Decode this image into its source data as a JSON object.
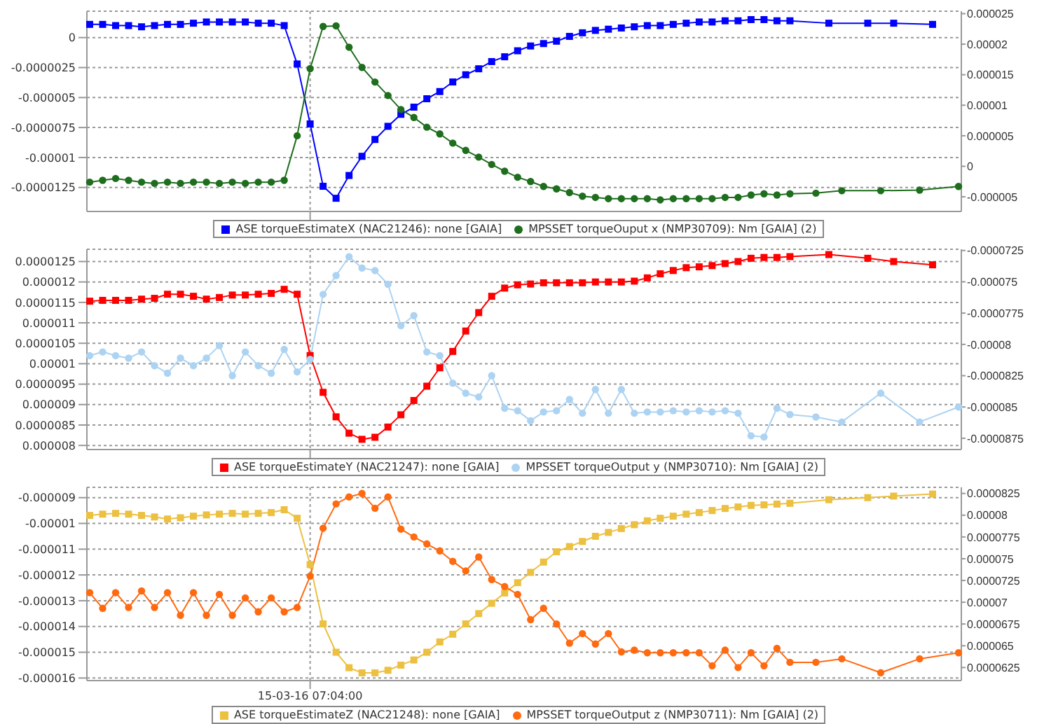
{
  "chart_data": [
    {
      "type": "line",
      "legend": "bottom",
      "grid": true,
      "tick_labels": "y",
      "line_style": "solid",
      "categories": [
        null,
        null,
        null,
        null,
        null,
        null,
        null,
        null,
        null,
        null,
        null,
        null,
        null,
        null,
        null,
        null,
        null,
        null,
        null,
        null,
        null,
        null,
        null,
        null,
        null,
        null,
        null,
        null,
        null,
        null,
        null,
        null,
        null,
        null,
        null,
        null,
        null,
        null,
        null,
        null,
        null,
        null,
        null,
        null,
        null,
        null,
        null,
        null,
        null,
        null,
        null,
        null,
        null,
        null,
        null,
        null,
        null,
        null,
        null,
        null,
        null,
        null,
        null,
        null,
        null,
        null,
        null,
        null
      ],
      "ylim": [
        -1.45e-05,
        2.2e-06
      ],
      "yticks": [
        {
          "value": 0,
          "label": "0"
        },
        {
          "value": -2.5e-06,
          "label": "-0.0000025"
        },
        {
          "value": -5e-06,
          "label": "-0.000005"
        },
        {
          "value": -7.5e-06,
          "label": "-0.0000075"
        },
        {
          "value": -1e-05,
          "label": "-0.00001"
        },
        {
          "value": -1.25e-05,
          "label": "-0.0000125"
        }
      ],
      "y2lim": [
        -7.4e-06,
        2.54e-05
      ],
      "y2ticks": [
        {
          "value": 2.5e-05,
          "label": "0.000025"
        },
        {
          "value": 2e-05,
          "label": "0.00002"
        },
        {
          "value": 1.5e-05,
          "label": "0.000015"
        },
        {
          "value": 1e-05,
          "label": "0.00001"
        },
        {
          "value": 5e-06,
          "label": "0.000005"
        },
        {
          "value": 0,
          "label": "0"
        },
        {
          "value": -5e-06,
          "label": "-0.000005"
        }
      ],
      "series": [
        {
          "name": "ASE torqueEstimateX (NAC21246): none [GAIA]",
          "color": "#0000ff",
          "marker": "square",
          "values": [
            1.1e-06,
            1.1e-06,
            1e-06,
            1e-06,
            9e-07,
            1e-06,
            1.1e-06,
            1.1e-06,
            1.2e-06,
            1.3e-06,
            1.3e-06,
            1.3e-06,
            1.3e-06,
            1.2e-06,
            1.2e-06,
            1e-06,
            -2.2e-06,
            -7.2e-06,
            -1.24e-05,
            -1.34e-05,
            -1.15e-05,
            -9.9e-06,
            -8.5e-06,
            -7.4e-06,
            -6.4e-06,
            -5.8e-06,
            -5.1e-06,
            -4.5e-06,
            -3.7e-06,
            -3.1e-06,
            -2.6e-06,
            -2e-06,
            -1.6e-06,
            -1.1e-06,
            -7e-07,
            -5e-07,
            -3e-07,
            1e-07,
            4e-07,
            6e-07,
            7e-07,
            8e-07,
            9e-07,
            1e-06,
            1e-06,
            1.1e-06,
            1.2e-06,
            1.3e-06,
            1.3e-06,
            1.4e-06,
            1.4e-06,
            1.5e-06,
            1.5e-06,
            1.4e-06,
            1.4e-06,
            null,
            null,
            1.2e-06,
            null,
            null,
            1.2e-06,
            null,
            1.2e-06,
            null,
            null,
            1.1e-06,
            null,
            null
          ]
        },
        {
          "name": "MPSSET torqueOuput x (NMP30709): Nm [GAIA] (2)",
          "color": "#1e6e1e",
          "marker": "circle",
          "axis": "y2",
          "values": [
            -2.6e-06,
            -2.3e-06,
            -2e-06,
            -2.3e-06,
            -2.6e-06,
            -2.8e-06,
            -2.6e-06,
            -2.8e-06,
            -2.6e-06,
            -2.6e-06,
            -2.8e-06,
            -2.6e-06,
            -2.8e-06,
            -2.6e-06,
            -2.6e-06,
            -2.3e-06,
            5e-06,
            1.6e-05,
            2.29e-05,
            2.3e-05,
            1.95e-05,
            1.62e-05,
            1.38e-05,
            1.16e-05,
            9.3e-06,
            8e-06,
            6.4e-06,
            5.3e-06,
            3.8e-06,
            2.6e-06,
            1.5e-06,
            3e-07,
            -8e-07,
            -1.8e-06,
            -2.5e-06,
            -3.3e-06,
            -3.7e-06,
            -4.3e-06,
            -4.9e-06,
            -5.1e-06,
            -5.3e-06,
            -5.3e-06,
            -5.3e-06,
            -5.3e-06,
            -5.5e-06,
            -5.3e-06,
            -5.3e-06,
            -5.3e-06,
            -5.3e-06,
            -5.1e-06,
            -5.1e-06,
            -4.7e-06,
            -4.5e-06,
            -4.7e-06,
            -4.5e-06,
            null,
            -4.4e-06,
            null,
            -4e-06,
            null,
            null,
            -4e-06,
            null,
            null,
            -3.9e-06,
            null,
            null,
            -3.3e-06
          ]
        }
      ]
    },
    {
      "type": "line",
      "legend": "bottom",
      "grid": true,
      "tick_labels": "y",
      "line_style": "solid",
      "categories": [
        null,
        null,
        null,
        null,
        null,
        null,
        null,
        null,
        null,
        null,
        null,
        null,
        null,
        null,
        null,
        null,
        null,
        null,
        null,
        null,
        null,
        null,
        null,
        null,
        null,
        null,
        null,
        null,
        null,
        null,
        null,
        null,
        null,
        null,
        null,
        null,
        null,
        null,
        null,
        null,
        null,
        null,
        null,
        null,
        null,
        null,
        null,
        null,
        null,
        null,
        null,
        null,
        null,
        null,
        null,
        null,
        null,
        null,
        null,
        null,
        null,
        null,
        null,
        null,
        null,
        null,
        null,
        null
      ],
      "ylim": [
        7.9e-06,
        1.28e-05
      ],
      "yticks": [
        {
          "value": 1.25e-05,
          "label": "0.0000125"
        },
        {
          "value": 1.2e-05,
          "label": "0.000012"
        },
        {
          "value": 1.15e-05,
          "label": "0.0000115"
        },
        {
          "value": 1.1e-05,
          "label": "0.000011"
        },
        {
          "value": 1.05e-05,
          "label": "0.0000105"
        },
        {
          "value": 1e-05,
          "label": "0.00001"
        },
        {
          "value": 9.5e-06,
          "label": "0.0000095"
        },
        {
          "value": 9e-06,
          "label": "0.000009"
        },
        {
          "value": 8.5e-06,
          "label": "0.0000085"
        },
        {
          "value": 8e-06,
          "label": "0.000008"
        }
      ],
      "y2lim": [
        -8.84e-05,
        -7.24e-05
      ],
      "y2ticks": [
        {
          "value": -7.25e-05,
          "label": "-0.0000725"
        },
        {
          "value": -7.5e-05,
          "label": "-0.000075"
        },
        {
          "value": -7.75e-05,
          "label": "-0.0000775"
        },
        {
          "value": -8e-05,
          "label": "-0.00008"
        },
        {
          "value": -8.25e-05,
          "label": "-0.0000825"
        },
        {
          "value": -8.5e-05,
          "label": "-0.000085"
        },
        {
          "value": -8.75e-05,
          "label": "-0.0000875"
        }
      ],
      "series": [
        {
          "name": "ASE torqueEstimateY (NAC21247): none [GAIA]",
          "color": "#ff0000",
          "marker": "square",
          "values": [
            1.153e-05,
            1.155e-05,
            1.155e-05,
            1.155e-05,
            1.158e-05,
            1.16e-05,
            1.17e-05,
            1.17e-05,
            1.165e-05,
            1.158e-05,
            1.162e-05,
            1.168e-05,
            1.168e-05,
            1.17e-05,
            1.172e-05,
            1.182e-05,
            1.17e-05,
            1.02e-05,
            9.3e-06,
            8.7e-06,
            8.3e-06,
            8.15e-06,
            8.2e-06,
            8.45e-06,
            8.75e-06,
            9.1e-06,
            9.45e-06,
            9.9e-06,
            1.03e-05,
            1.08e-05,
            1.125e-05,
            1.165e-05,
            1.185e-05,
            1.193e-05,
            1.195e-05,
            1.198e-05,
            1.198e-05,
            1.198e-05,
            1.198e-05,
            1.2e-05,
            1.2e-05,
            1.2e-05,
            1.202e-05,
            1.21e-05,
            1.22e-05,
            1.228e-05,
            1.235e-05,
            1.237e-05,
            1.24e-05,
            1.245e-05,
            1.25e-05,
            1.258e-05,
            1.26e-05,
            1.26e-05,
            1.262e-05,
            null,
            null,
            1.267e-05,
            null,
            null,
            1.258e-05,
            null,
            1.25e-05,
            null,
            null,
            1.242e-05,
            null,
            null
          ]
        },
        {
          "name": "MPSSET torqueOutput y (NMP30710): Nm [GAIA] (2)",
          "color": "#add3f2",
          "marker": "circle",
          "axis": "y2",
          "values": [
            -8.09e-05,
            -8.06e-05,
            -8.09e-05,
            -8.11e-05,
            -8.06e-05,
            -8.17e-05,
            -8.23e-05,
            -8.11e-05,
            -8.17e-05,
            -8.11e-05,
            -8.01e-05,
            -8.25e-05,
            -8.06e-05,
            -8.17e-05,
            -8.23e-05,
            -8.04e-05,
            -8.22e-05,
            -8.12e-05,
            -7.6e-05,
            -7.45e-05,
            -7.3e-05,
            -7.39e-05,
            -7.41e-05,
            -7.52e-05,
            -7.85e-05,
            -7.77e-05,
            -8.06e-05,
            -8.09e-05,
            -8.31e-05,
            -8.39e-05,
            -8.42e-05,
            -8.25e-05,
            -8.51e-05,
            -8.53e-05,
            -8.61e-05,
            -8.54e-05,
            -8.53e-05,
            -8.44e-05,
            -8.55e-05,
            -8.36e-05,
            -8.55e-05,
            -8.36e-05,
            -8.55e-05,
            -8.54e-05,
            -8.54e-05,
            -8.53e-05,
            -8.54e-05,
            -8.53e-05,
            -8.54e-05,
            -8.53e-05,
            -8.55e-05,
            -8.73e-05,
            -8.74e-05,
            -8.51e-05,
            -8.56e-05,
            null,
            -8.58e-05,
            null,
            -8.62e-05,
            null,
            null,
            -8.39e-05,
            null,
            null,
            -8.62e-05,
            null,
            null,
            -8.5e-05
          ]
        }
      ]
    },
    {
      "type": "line",
      "legend": "bottom",
      "grid": true,
      "line_style": "solid",
      "categories": [
        null,
        null,
        null,
        null,
        null,
        null,
        null,
        null,
        null,
        null,
        null,
        null,
        null,
        null,
        null,
        null,
        null,
        "15-03-16 07:04:00",
        null,
        null,
        null,
        null,
        null,
        null,
        null,
        null,
        null,
        null,
        null,
        null,
        null,
        null,
        null,
        null,
        null,
        null,
        null,
        null,
        null,
        null,
        null,
        null,
        null,
        null,
        null,
        null,
        null,
        null,
        null,
        null,
        null,
        null,
        null,
        null,
        null,
        null,
        null,
        null,
        null,
        null,
        null,
        null,
        null,
        null,
        null,
        null,
        null,
        null
      ],
      "ylim": [
        -1.61e-05,
        -8.6e-06
      ],
      "yticks": [
        {
          "value": -9e-06,
          "label": "-0.000009"
        },
        {
          "value": -1e-05,
          "label": "-0.00001"
        },
        {
          "value": -1.1e-05,
          "label": "-0.000011"
        },
        {
          "value": -1.2e-05,
          "label": "-0.000012"
        },
        {
          "value": -1.3e-05,
          "label": "-0.000013"
        },
        {
          "value": -1.4e-05,
          "label": "-0.000014"
        },
        {
          "value": -1.5e-05,
          "label": "-0.000015"
        },
        {
          "value": -1.6e-05,
          "label": "-0.000016"
        }
      ],
      "y2lim": [
        6.1e-05,
        8.32e-05
      ],
      "y2ticks": [
        {
          "value": 8.25e-05,
          "label": "0.0000825"
        },
        {
          "value": 8e-05,
          "label": "0.00008"
        },
        {
          "value": 7.75e-05,
          "label": "0.0000775"
        },
        {
          "value": 7.5e-05,
          "label": "0.000075"
        },
        {
          "value": 7.25e-05,
          "label": "0.0000725"
        },
        {
          "value": 7e-05,
          "label": "0.00007"
        },
        {
          "value": 6.75e-05,
          "label": "0.0000675"
        },
        {
          "value": 6.5e-05,
          "label": "0.000065"
        },
        {
          "value": 6.25e-05,
          "label": "0.0000625"
        }
      ],
      "series": [
        {
          "name": "ASE torqueEstimateZ (NAC21248): none [GAIA]",
          "color": "#ecc040",
          "marker": "square",
          "values": [
            -9.69e-06,
            -9.64e-06,
            -9.61e-06,
            -9.64e-06,
            -9.69e-06,
            -9.75e-06,
            -9.83e-06,
            -9.78e-06,
            -9.72e-06,
            -9.67e-06,
            -9.64e-06,
            -9.61e-06,
            -9.64e-06,
            -9.61e-06,
            -9.58e-06,
            -9.47e-06,
            -9.8e-06,
            -1.16e-05,
            -1.39e-05,
            -1.5e-05,
            -1.56e-05,
            -1.58e-05,
            -1.58e-05,
            -1.57e-05,
            -1.55e-05,
            -1.53e-05,
            -1.5e-05,
            -1.46e-05,
            -1.43e-05,
            -1.39e-05,
            -1.35e-05,
            -1.31e-05,
            -1.27e-05,
            -1.23e-05,
            -1.19e-05,
            -1.15e-05,
            -1.11e-05,
            -1.09e-05,
            -1.07e-05,
            -1.05e-05,
            -1.035e-05,
            -1.02e-05,
            -1.005e-05,
            -9.9e-06,
            -9.8e-06,
            -9.72e-06,
            -9.64e-06,
            -9.58e-06,
            -9.5e-06,
            -9.42e-06,
            -9.36e-06,
            -9.3e-06,
            -9.28e-06,
            -9.25e-06,
            -9.22e-06,
            null,
            null,
            -9.08e-06,
            null,
            null,
            -9e-06,
            null,
            -8.94e-06,
            null,
            null,
            -8.86e-06,
            null,
            null
          ]
        },
        {
          "name": "MPSSET torqueOutput z (NMP30711): Nm [GAIA] (2)",
          "color": "#ff6a10",
          "marker": "circle",
          "axis": "y2",
          "values": [
            7.11e-05,
            6.93e-05,
            7.11e-05,
            6.94e-05,
            7.13e-05,
            6.94e-05,
            7.11e-05,
            6.85e-05,
            7.11e-05,
            6.85e-05,
            7.09e-05,
            6.85e-05,
            7.05e-05,
            6.89e-05,
            7.05e-05,
            6.89e-05,
            6.94e-05,
            7.3e-05,
            7.85e-05,
            8.13e-05,
            8.21e-05,
            8.25e-05,
            8.08e-05,
            8.21e-05,
            7.84e-05,
            7.75e-05,
            7.67e-05,
            7.59e-05,
            7.47e-05,
            7.36e-05,
            7.52e-05,
            7.26e-05,
            7.18e-05,
            7.09e-05,
            6.8e-05,
            6.93e-05,
            6.75e-05,
            6.53e-05,
            6.64e-05,
            6.52e-05,
            6.64e-05,
            6.43e-05,
            6.45e-05,
            6.42e-05,
            6.42e-05,
            6.42e-05,
            6.42e-05,
            6.42e-05,
            6.27e-05,
            6.45e-05,
            6.25e-05,
            6.42e-05,
            6.27e-05,
            6.47e-05,
            6.31e-05,
            null,
            6.31e-05,
            null,
            6.35e-05,
            null,
            null,
            6.19e-05,
            null,
            null,
            6.35e-05,
            null,
            null,
            6.42e-05
          ]
        }
      ]
    }
  ]
}
